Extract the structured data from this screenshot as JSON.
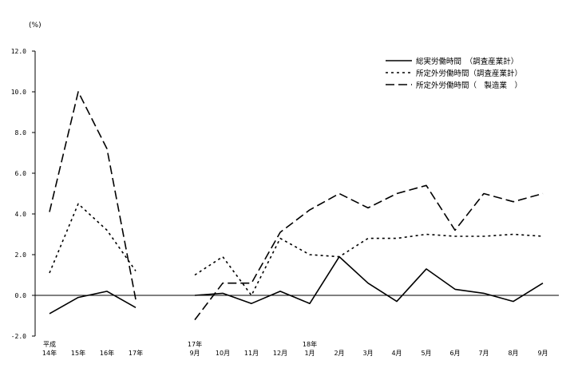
{
  "chart_data": {
    "type": "line",
    "unit_label": "(%)",
    "title": "",
    "xlabel": "",
    "ylabel": "",
    "ylim": [
      -2.0,
      12.0
    ],
    "y_ticks": [
      "12.0",
      "10.0",
      "8.0",
      "6.0",
      "4.0",
      "2.0",
      "0.0",
      "-2.0"
    ],
    "grid": false,
    "legend_position": "top-right",
    "categories": [
      {
        "line1": "平成",
        "line2": "14年"
      },
      {
        "line1": "",
        "line2": "15年"
      },
      {
        "line1": "",
        "line2": "16年"
      },
      {
        "line1": "",
        "line2": "17年"
      },
      {
        "line1": "17年",
        "line2": "9月"
      },
      {
        "line1": "",
        "line2": "10月"
      },
      {
        "line1": "",
        "line2": "11月"
      },
      {
        "line1": "",
        "line2": "12月"
      },
      {
        "line1": "18年",
        "line2": "1月"
      },
      {
        "line1": "",
        "line2": "2月"
      },
      {
        "line1": "",
        "line2": "3月"
      },
      {
        "line1": "",
        "line2": "4月"
      },
      {
        "line1": "",
        "line2": "5月"
      },
      {
        "line1": "",
        "line2": "6月"
      },
      {
        "line1": "",
        "line2": "7月"
      },
      {
        "line1": "",
        "line2": "8月"
      },
      {
        "line1": "",
        "line2": "9月"
      }
    ],
    "series": [
      {
        "name": "総実労働時間　（調査産業計）",
        "style": "solid",
        "annual": [
          -0.9,
          -0.1,
          0.2,
          -0.6
        ],
        "monthly": [
          0.0,
          0.1,
          -0.4,
          0.2,
          -0.4,
          1.9,
          0.6,
          -0.3,
          1.3,
          0.3,
          0.1,
          -0.3,
          0.6
        ]
      },
      {
        "name": "所定外労働時間（調査産業計）",
        "style": "dotted",
        "annual": [
          1.1,
          4.5,
          3.2,
          1.2
        ],
        "monthly": [
          1.0,
          1.9,
          0.0,
          2.8,
          2.0,
          1.9,
          2.8,
          2.8,
          3.0,
          2.9,
          2.9,
          3.0,
          2.9
        ]
      },
      {
        "name": "所定外労働時間（　製造業　）",
        "style": "dashed",
        "annual": [
          4.1,
          10.0,
          7.2,
          -0.2
        ],
        "monthly": [
          -1.2,
          0.6,
          0.6,
          3.1,
          4.2,
          5.0,
          4.3,
          5.0,
          5.4,
          3.2,
          5.0,
          4.6,
          5.0
        ]
      }
    ]
  }
}
